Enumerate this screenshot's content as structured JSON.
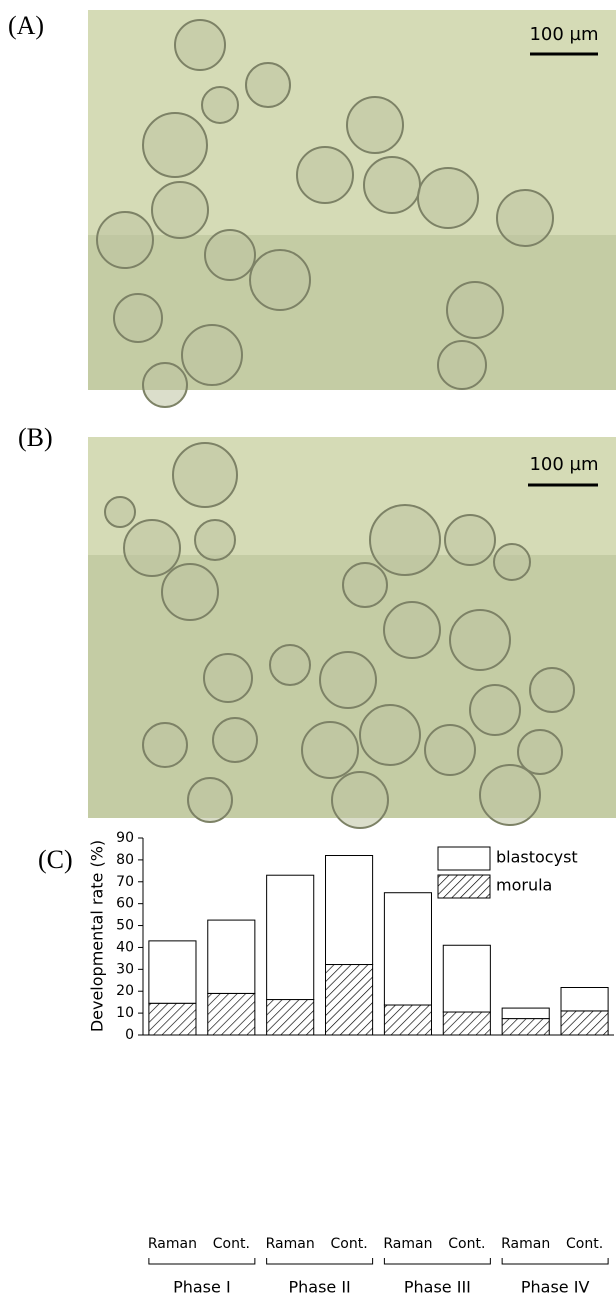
{
  "panel_labels": [
    "(A)",
    "(B)",
    "(C)"
  ],
  "scale_bar_labels": [
    "100 µm",
    "100 µm"
  ],
  "chart_data": {
    "type": "stacked-bar",
    "y_label": "Developmental rate (%)",
    "categories": [
      "Raman",
      "Cont.",
      "Raman",
      "Cont.",
      "Raman",
      "Cont.",
      "Raman",
      "Cont."
    ],
    "groups": [
      "Phase I",
      "Phase II",
      "Phase III",
      "Phase IV"
    ],
    "series": [
      {
        "name": "morula",
        "color": "#ffffff",
        "hatch": true,
        "values": [
          14.5,
          19,
          16.2,
          32.2,
          13.7,
          10.5,
          7.5,
          11
        ]
      },
      {
        "name": "blastocyst",
        "color": "#ffffff",
        "hatch": false,
        "values": [
          28.5,
          33.5,
          56.8,
          49.8,
          51.3,
          30.5,
          4.8,
          10.7
        ]
      }
    ],
    "ylim": [
      0,
      90
    ],
    "yticks": [
      0,
      10,
      20,
      30,
      40,
      50,
      60,
      70,
      80,
      90
    ],
    "legend": "top-right"
  }
}
